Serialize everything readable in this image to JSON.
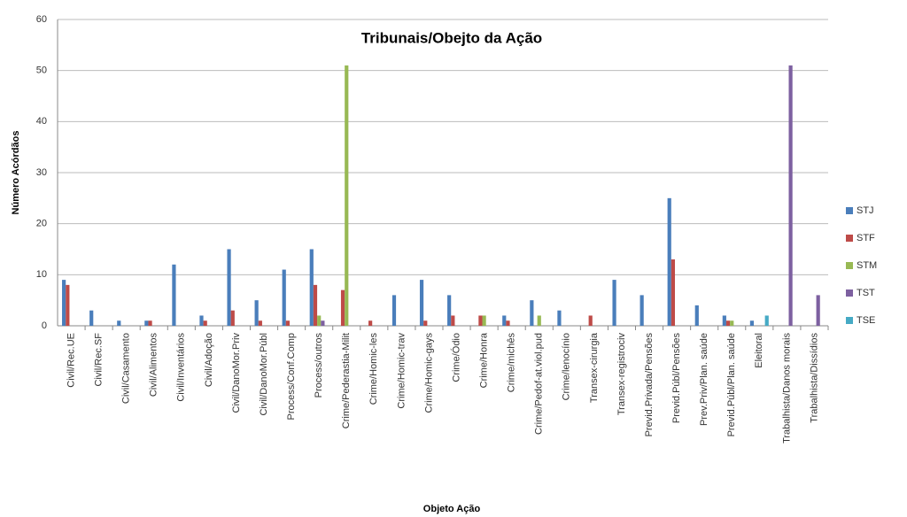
{
  "chart_data": {
    "type": "bar",
    "title": "Tribunais/Obejto da Ação",
    "x_label": "Objeto Ação",
    "y_label": "Número Acórdãos",
    "categories": [
      "Civil/Rec.UE",
      "Civil/Rec.SF",
      "Civil/Casamento",
      "Civil/Alimentos",
      "Civil/Inventários",
      "Civil/Adoção",
      "Civil/DanoMor.Priv",
      "Civil/DanoMor.Públ",
      "Process/Conf.Comp",
      "Process/outros",
      "Crime/Pederastia-Milit",
      "Crime/Homic-les",
      "Crime/Homic-trav",
      "Crime/Homic-gays",
      "Crime/Ódio",
      "Crime/Honra",
      "Crime/michês",
      "Crime/Pedof-at.viol.pud",
      "Crime/lenocínio",
      "Transex-cirurgia",
      "Transex-registrociv",
      "Previd.Privada/Pensões",
      "Previd.Públ/Pensões",
      "Prev.Priv/Plan. saúde",
      "Previd.Públ/Plan. saúde",
      "Eleitoral",
      "Trabalhista/Danos morais",
      "Trabalhista/Dissídios"
    ],
    "series": [
      {
        "name": "STJ",
        "color": "#4a7ebb",
        "values": [
          9,
          3,
          1,
          1,
          12,
          2,
          15,
          5,
          11,
          15,
          0,
          0,
          6,
          9,
          6,
          0,
          2,
          5,
          3,
          0,
          9,
          6,
          25,
          4,
          2,
          1,
          0,
          0
        ]
      },
      {
        "name": "STF",
        "color": "#be4b48",
        "values": [
          8,
          0,
          0,
          1,
          0,
          1,
          3,
          1,
          1,
          8,
          7,
          1,
          0,
          1,
          2,
          2,
          1,
          0,
          0,
          2,
          0,
          0,
          13,
          0,
          1,
          0,
          0,
          0
        ]
      },
      {
        "name": "STM",
        "color": "#98b954",
        "values": [
          0,
          0,
          0,
          0,
          0,
          0,
          0,
          0,
          0,
          2,
          51,
          0,
          0,
          0,
          0,
          2,
          0,
          2,
          0,
          0,
          0,
          0,
          0,
          0,
          1,
          0,
          0,
          0
        ]
      },
      {
        "name": "TST",
        "color": "#7d60a0",
        "values": [
          0,
          0,
          0,
          0,
          0,
          0,
          0,
          0,
          0,
          1,
          0,
          0,
          0,
          0,
          0,
          0,
          0,
          0,
          0,
          0,
          0,
          0,
          0,
          0,
          0,
          0,
          51,
          6
        ]
      },
      {
        "name": "TSE",
        "color": "#46aac5",
        "values": [
          0,
          0,
          0,
          0,
          0,
          0,
          0,
          0,
          0,
          0,
          0,
          0,
          0,
          0,
          0,
          0,
          0,
          0,
          0,
          0,
          0,
          0,
          0,
          0,
          0,
          2,
          0,
          0
        ]
      }
    ],
    "ylim": [
      0,
      60
    ],
    "yticks": [
      0,
      10,
      20,
      30,
      40,
      50,
      60
    ],
    "grid": true,
    "legend": "right"
  }
}
